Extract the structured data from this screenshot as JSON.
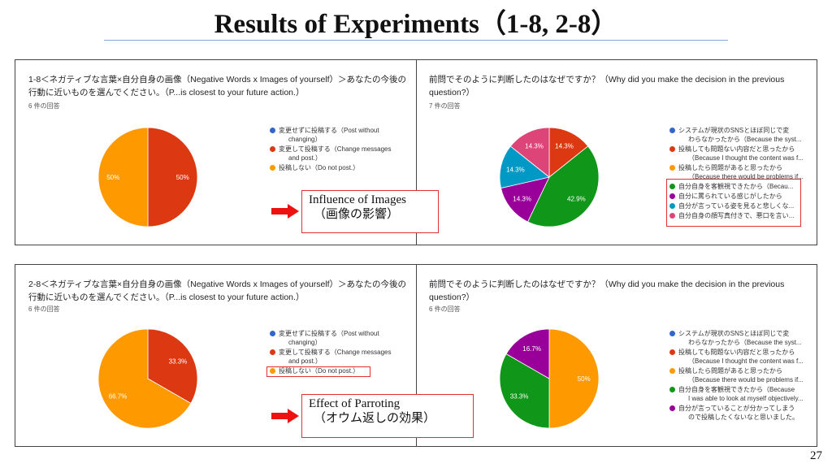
{
  "slide": {
    "title": "Results of Experiments（1-8, 2-8）",
    "page_number": "27"
  },
  "panels": {
    "q1_8": {
      "question": "1-8＜ネガティブな言葉×自分自身の画像（Negative Words x Images of yourself）＞あなたの今後の行動に近いものを選んでください。（P...is closest to your future action.）",
      "count": "6 件の回答",
      "legend": [
        {
          "text": "変更せずに投稿する（Post without",
          "cont": "changing）",
          "color": "#3366cc"
        },
        {
          "text": "変更して投稿する（Change messages",
          "cont": "and post.）",
          "color": "#dc3912"
        },
        {
          "text": "投稿しない（Do not post.）",
          "cont": "",
          "color": "#ff9900"
        }
      ]
    },
    "why1_8": {
      "question": "前問でそのように判断したのはなぜですか？（Why did you make the decision in the previous question?）",
      "count": "7 件の回答",
      "legend": [
        {
          "text": "システムが現状のSNSとほぼ同じで変",
          "cont": "わらなかったから（Because the syst...",
          "color": "#3366cc"
        },
        {
          "text": "投稿しても問題ない内容だと思ったから",
          "cont": "（Because I thought the content was f...",
          "color": "#dc3912"
        },
        {
          "text": "投稿したら問題があると思ったから",
          "cont": "（Because there would be problems if...",
          "color": "#ff9900"
        },
        {
          "text": "自分自身を客観視できたから（Becau...",
          "cont": "",
          "color": "#109618"
        },
        {
          "text": "自分に罵られている感じがしたから",
          "cont": "",
          "color": "#990099"
        },
        {
          "text": "自分が言っている姿を見ると悲しくな...",
          "cont": "",
          "color": "#0099c6"
        },
        {
          "text": "自分自身の顔写真付きで、悪口を言い...",
          "cont": "",
          "color": "#dd4477"
        }
      ]
    },
    "q2_8": {
      "question": "2-8＜ネガティブな言葉×自分自身の画像（Negative Words x Images of yourself）＞あなたの今後の行動に近いものを選んでください。（P...is closest to your future action.）",
      "count": "6 件の回答",
      "legend": [
        {
          "text": "変更せずに投稿する（Post without",
          "cont": "changing）",
          "color": "#3366cc"
        },
        {
          "text": "変更して投稿する（Change messages",
          "cont": "and post.）",
          "color": "#dc3912"
        },
        {
          "text": "投稿しない（Do not post.）",
          "cont": "",
          "color": "#ff9900"
        }
      ]
    },
    "why2_8": {
      "question": "前問でそのように判断したのはなぜですか？（Why did you make the decision in the previous question?）",
      "count": "6 件の回答",
      "legend": [
        {
          "text": "システムが現状のSNSとほぼ同じで変",
          "cont": "わらなかったから（Because the syst...",
          "color": "#3366cc"
        },
        {
          "text": "投稿しても問題ない内容だと思ったから",
          "cont": "（Because I thought the content was f...",
          "color": "#dc3912"
        },
        {
          "text": "投稿したら問題があると思ったから",
          "cont": "（Because there would be problems if...",
          "color": "#ff9900"
        },
        {
          "text": "自分自身を客観視できたから（Because",
          "cont": "I was able to look at myself objectively...",
          "color": "#109618"
        },
        {
          "text": "自分が言っていることが分かってしまう",
          "cont": "ので投稿したくないなと思いました。",
          "color": "#990099"
        }
      ]
    }
  },
  "callouts": {
    "images": {
      "title": "Influence of Images",
      "subtitle": "（画像の影響）"
    },
    "parroting": {
      "title": "Effect of Parroting",
      "subtitle": "（オウム返しの効果）"
    }
  },
  "chart_data": [
    {
      "type": "pie",
      "title": "1-8",
      "categories": [
        "Post without changing",
        "Change messages and post.",
        "Do not post."
      ],
      "values": [
        0,
        50,
        50
      ],
      "labels": [
        "",
        "50%",
        "50%"
      ],
      "colors": [
        "#3366cc",
        "#dc3912",
        "#ff9900"
      ]
    },
    {
      "type": "pie",
      "title": "1-8 reasons",
      "categories": [
        "Because the syst...",
        "Because I thought the content was f...",
        "Because there would be problems if...",
        "Becau...",
        "自分に罵られている感じがしたから",
        "自分が言っている姿を見ると悲しくな...",
        "自分自身の顔写真付きで、悪口を言い..."
      ],
      "values": [
        0,
        14.3,
        0,
        42.9,
        14.3,
        14.3,
        14.3
      ],
      "labels": [
        "",
        "14.3%",
        "",
        "42.9%",
        "14.3%",
        "14.3%",
        "14.3%"
      ],
      "colors": [
        "#3366cc",
        "#dc3912",
        "#ff9900",
        "#109618",
        "#990099",
        "#0099c6",
        "#dd4477"
      ]
    },
    {
      "type": "pie",
      "title": "2-8",
      "categories": [
        "Post without changing",
        "Change messages and post.",
        "Do not post."
      ],
      "values": [
        0,
        33.3,
        66.7
      ],
      "labels": [
        "",
        "33.3%",
        "66.7%"
      ],
      "colors": [
        "#3366cc",
        "#dc3912",
        "#ff9900"
      ]
    },
    {
      "type": "pie",
      "title": "2-8 reasons",
      "categories": [
        "Because the syst...",
        "Because I thought the content was f...",
        "Because there would be problems if...",
        "I was able to look at myself objectively...",
        "ので投稿したくないなと思いました。"
      ],
      "values": [
        0,
        0,
        50,
        33.3,
        16.7
      ],
      "labels": [
        "",
        "",
        "50%",
        "33.3%",
        "16.7%"
      ],
      "colors": [
        "#3366cc",
        "#dc3912",
        "#ff9900",
        "#109618",
        "#990099"
      ]
    }
  ]
}
